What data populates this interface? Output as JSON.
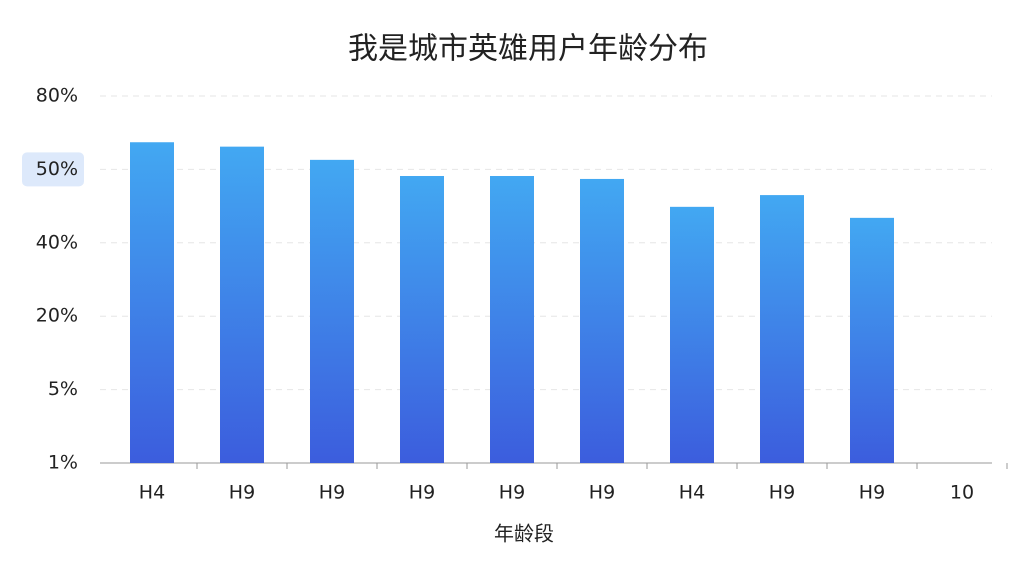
{
  "chart_data": {
    "type": "bar",
    "title": "我是城市英雄用户年龄分布",
    "x_label": "年龄段",
    "categories": [
      "H4",
      "H9",
      "H9",
      "H9",
      "H9",
      "H9",
      "H4",
      "H9",
      "H9",
      "10"
    ],
    "values": [
      4.37,
      4.31,
      4.13,
      3.91,
      3.91,
      3.87,
      3.49,
      3.65,
      3.34,
      null
    ],
    "gradient": [
      "#42a8f2",
      "#3c5ddd"
    ],
    "ylim": [
      0,
      5
    ],
    "yticks": [
      {
        "value": 0,
        "label": "1%"
      },
      {
        "value": 1,
        "label": "5%"
      },
      {
        "value": 2,
        "label": "20%"
      },
      {
        "value": 3,
        "label": "40%"
      },
      {
        "value": 4,
        "label": "50%"
      },
      {
        "value": 5,
        "label": "80%"
      }
    ],
    "highlight_tick": 4,
    "highlight_color": "#dde9fb",
    "grid": true
  }
}
